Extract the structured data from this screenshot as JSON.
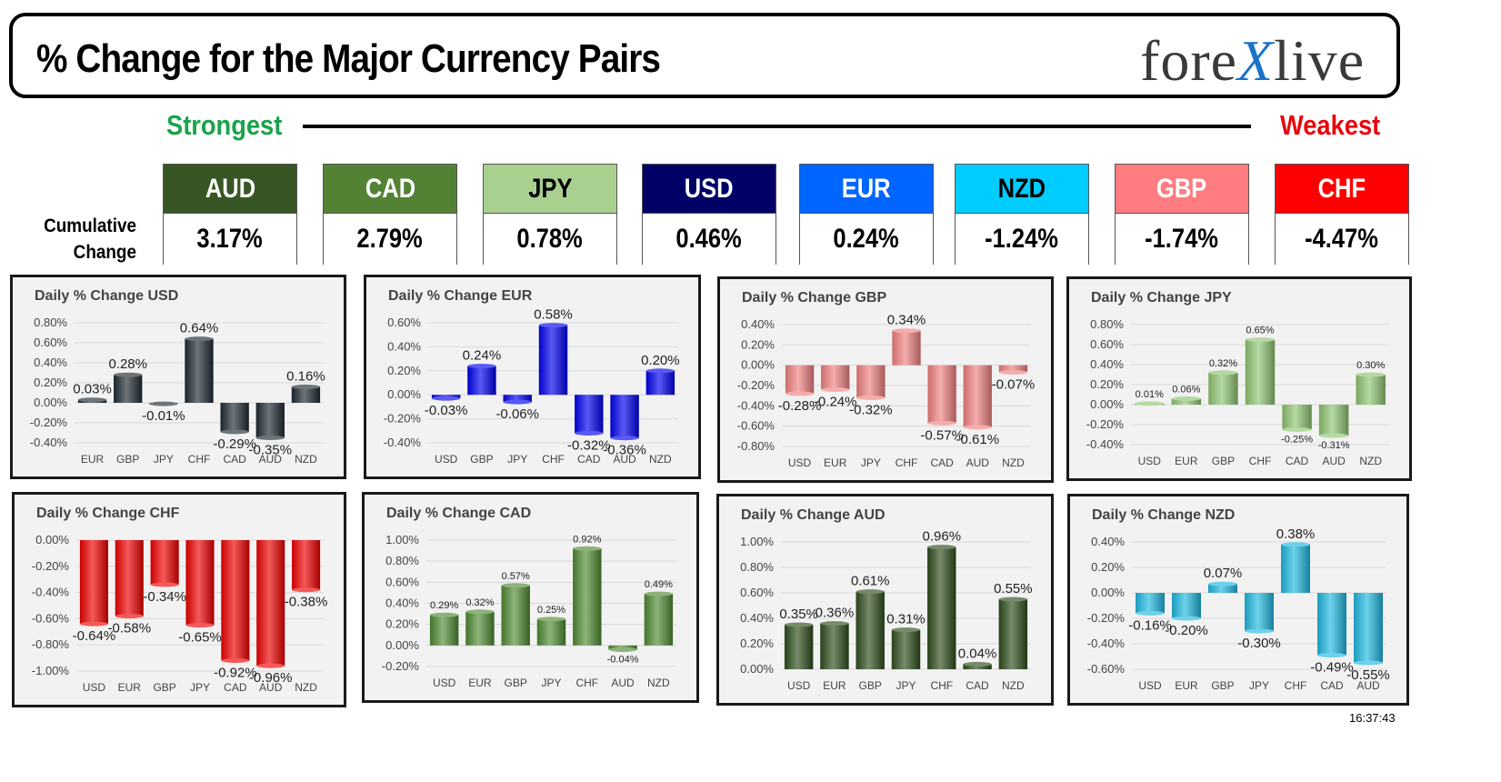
{
  "header": {
    "title": "% Change for the Major Currency Pairs",
    "logo_text_1": "fore",
    "logo_text_x": "X",
    "logo_text_2": "live",
    "strongest_label": "Strongest",
    "weakest_label": "Weakest",
    "cumulative_label_1": "Cumulative",
    "cumulative_label_2": "Change"
  },
  "colors": {
    "strongest": "#1aa34a",
    "weakest": "#e8060c",
    "logo_accent": "#1a73c9"
  },
  "cumulative": [
    {
      "currency": "AUD",
      "value": "3.17%",
      "color": "#375623",
      "text_color": "#ffffff"
    },
    {
      "currency": "CAD",
      "value": "2.79%",
      "color": "#548235",
      "text_color": "#ffffff"
    },
    {
      "currency": "JPY",
      "value": "0.78%",
      "color": "#a9d08e",
      "text_color": "#000000"
    },
    {
      "currency": "USD",
      "value": "0.46%",
      "color": "#000066",
      "text_color": "#ffffff"
    },
    {
      "currency": "EUR",
      "value": "0.24%",
      "color": "#0066ff",
      "text_color": "#ffffff"
    },
    {
      "currency": "NZD",
      "value": "-1.24%",
      "color": "#00ccff",
      "text_color": "#000000"
    },
    {
      "currency": "GBP",
      "value": "-1.74%",
      "color": "#ff7c80",
      "text_color": "#ffffff"
    },
    {
      "currency": "CHF",
      "value": "-4.47%",
      "color": "#ff0000",
      "text_color": "#ffffff"
    }
  ],
  "timestamp": "16:37:43",
  "chart_data": [
    {
      "type": "bar",
      "title": "Daily % Change USD",
      "color": "#1f2a33",
      "label_size": 15,
      "categories": [
        "EUR",
        "GBP",
        "JPY",
        "CHF",
        "CAD",
        "AUD",
        "NZD"
      ],
      "values": [
        0.03,
        0.28,
        -0.01,
        0.64,
        -0.29,
        -0.35,
        0.16
      ],
      "labels": [
        "0.03%",
        "0.28%",
        "-0.01%",
        "0.64%",
        "-0.29%",
        "-0.35%",
        "0.16%"
      ],
      "yticks": [
        0.8,
        0.6,
        0.4,
        0.2,
        0,
        -0.2,
        -0.4
      ],
      "ytick_labels": [
        "0.80%",
        "0.60%",
        "0.40%",
        "0.20%",
        "0.00%",
        "-0.20%",
        "-0.40%"
      ]
    },
    {
      "type": "bar",
      "title": "Daily % Change EUR",
      "color": "#0000ee",
      "label_size": 15,
      "categories": [
        "USD",
        "GBP",
        "JPY",
        "CHF",
        "CAD",
        "AUD",
        "NZD"
      ],
      "values": [
        -0.03,
        0.24,
        -0.06,
        0.58,
        -0.32,
        -0.36,
        0.2
      ],
      "labels": [
        "-0.03%",
        "0.24%",
        "-0.06%",
        "0.58%",
        "-0.32%",
        "-0.36%",
        "0.20%"
      ],
      "yticks": [
        0.6,
        0.4,
        0.2,
        0,
        -0.2,
        -0.4
      ],
      "ytick_labels": [
        "0.60%",
        "0.40%",
        "0.20%",
        "0.00%",
        "-0.20%",
        "-0.40%"
      ]
    },
    {
      "type": "bar",
      "title": "Daily % Change GBP",
      "color": "#f08080",
      "label_size": 15,
      "categories": [
        "USD",
        "EUR",
        "JPY",
        "CHF",
        "CAD",
        "AUD",
        "NZD"
      ],
      "values": [
        -0.28,
        -0.24,
        -0.32,
        0.34,
        -0.57,
        -0.61,
        -0.07
      ],
      "labels": [
        "-0.28%",
        "-0.24%",
        "-0.32%",
        "0.34%",
        "-0.57%",
        "-0.61%",
        "-0.07%"
      ],
      "yticks": [
        0.4,
        0.2,
        0,
        -0.2,
        -0.4,
        -0.6,
        -0.8
      ],
      "ytick_labels": [
        "0.40%",
        "0.20%",
        "0.00%",
        "-0.20%",
        "-0.40%",
        "-0.60%",
        "-0.80%"
      ]
    },
    {
      "type": "bar",
      "title": "Daily % Change JPY",
      "color": "#8fc471",
      "label_size": 11,
      "categories": [
        "USD",
        "EUR",
        "GBP",
        "CHF",
        "CAD",
        "AUD",
        "NZD"
      ],
      "values": [
        0.01,
        0.06,
        0.32,
        0.65,
        -0.25,
        -0.31,
        0.3
      ],
      "labels": [
        "0.01%",
        "0.06%",
        "0.32%",
        "0.65%",
        "-0.25%",
        "-0.31%",
        "0.30%"
      ],
      "yticks": [
        0.8,
        0.6,
        0.4,
        0.2,
        0,
        -0.2,
        -0.4
      ],
      "ytick_labels": [
        "0.80%",
        "0.60%",
        "0.40%",
        "0.20%",
        "0.00%",
        "-0.20%",
        "-0.40%"
      ]
    },
    {
      "type": "bar",
      "title": "Daily % Change CHF",
      "color": "#ee0000",
      "label_size": 15,
      "categories": [
        "USD",
        "EUR",
        "GBP",
        "JPY",
        "CAD",
        "AUD",
        "NZD"
      ],
      "values": [
        -0.64,
        -0.58,
        -0.34,
        -0.65,
        -0.92,
        -0.96,
        -0.38
      ],
      "labels": [
        "-0.64%",
        "-0.58%",
        "-0.34%",
        "-0.65%",
        "-0.92%",
        "-0.96%",
        "-0.38%"
      ],
      "yticks": [
        0,
        -0.2,
        -0.4,
        -0.6,
        -0.8,
        -1.0
      ],
      "ytick_labels": [
        "0.00%",
        "-0.20%",
        "-0.40%",
        "-0.60%",
        "-0.80%",
        "-1.00%"
      ]
    },
    {
      "type": "bar",
      "title": "Daily % Change CAD",
      "color": "#4f8a32",
      "label_size": 11,
      "categories": [
        "USD",
        "EUR",
        "GBP",
        "JPY",
        "CHF",
        "AUD",
        "NZD"
      ],
      "values": [
        0.29,
        0.32,
        0.57,
        0.25,
        0.92,
        -0.04,
        0.49
      ],
      "labels": [
        "0.29%",
        "0.32%",
        "0.57%",
        "0.25%",
        "0.92%",
        "-0.04%",
        "0.49%"
      ],
      "yticks": [
        1.0,
        0.8,
        0.6,
        0.4,
        0.2,
        0,
        -0.2
      ],
      "ytick_labels": [
        "1.00%",
        "0.80%",
        "0.60%",
        "0.40%",
        "0.20%",
        "0.00%",
        "-0.20%"
      ]
    },
    {
      "type": "bar",
      "title": "Daily % Change AUD",
      "color": "#2e4d1c",
      "label_size": 15,
      "categories": [
        "USD",
        "EUR",
        "GBP",
        "JPY",
        "CHF",
        "CAD",
        "NZD"
      ],
      "values": [
        0.35,
        0.36,
        0.61,
        0.31,
        0.96,
        0.04,
        0.55
      ],
      "labels": [
        "0.35%",
        "0.36%",
        "0.61%",
        "0.31%",
        "0.96%",
        "0.04%",
        "0.55%"
      ],
      "yticks": [
        1.0,
        0.8,
        0.6,
        0.4,
        0.2,
        0
      ],
      "ytick_labels": [
        "1.00%",
        "0.80%",
        "0.60%",
        "0.40%",
        "0.20%",
        "0.00%"
      ]
    },
    {
      "type": "bar",
      "title": "Daily % Change NZD",
      "color": "#1fb8e0",
      "label_size": 15,
      "categories": [
        "USD",
        "EUR",
        "GBP",
        "JPY",
        "CHF",
        "CAD",
        "AUD"
      ],
      "values": [
        -0.16,
        -0.2,
        0.07,
        -0.3,
        0.38,
        -0.49,
        -0.55
      ],
      "labels": [
        "-0.16%",
        "-0.20%",
        "0.07%",
        "-0.30%",
        "0.38%",
        "-0.49%",
        "-0.55%"
      ],
      "yticks": [
        0.4,
        0.2,
        0,
        -0.2,
        -0.4,
        -0.6
      ],
      "ytick_labels": [
        "0.40%",
        "0.20%",
        "0.00%",
        "-0.20%",
        "-0.40%",
        "-0.60%"
      ]
    }
  ]
}
